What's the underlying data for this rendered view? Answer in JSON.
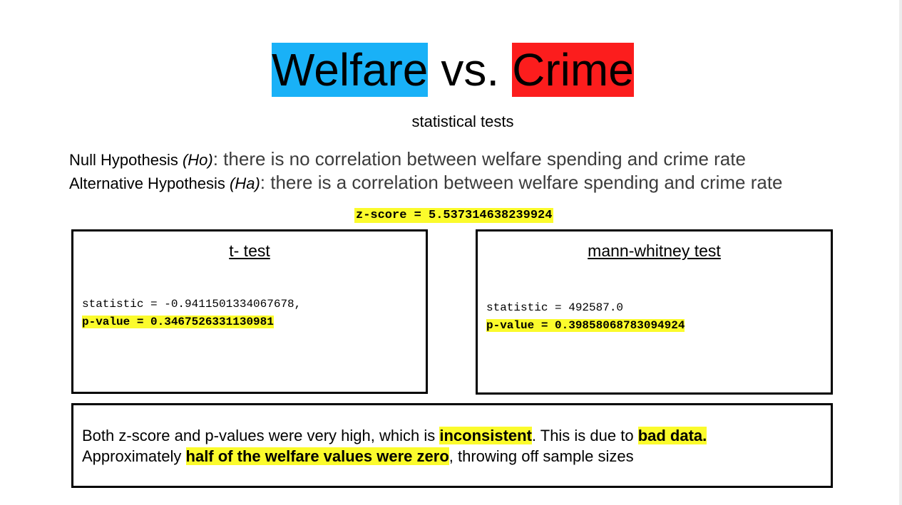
{
  "title": {
    "left": "Welfare",
    "middle": "vs.",
    "right": "Crime"
  },
  "subtitle": "statistical tests",
  "hypotheses": {
    "null_label": "Null Hypothesis ",
    "null_abbr": "(Ho)",
    "null_text": ": there is no correlation between welfare spending and crime rate",
    "alt_label": "Alternative Hypothesis ",
    "alt_abbr": "(Ha)",
    "alt_text": ": there is a correlation between welfare spending and crime rate"
  },
  "zscore": "z-score = 5.537314638239924",
  "ttest": {
    "title": "t- test",
    "statistic": "statistic = -0.9411501334067678,",
    "pvalue": "p-value = 0.3467526331130981"
  },
  "mannwhitney": {
    "title": "mann-whitney test",
    "statistic": "statistic = 492587.0",
    "pvalue": "p-value = 0.39858068783094924"
  },
  "conclusion": {
    "part1": "Both z-score and p-values were very high, which is ",
    "highlight1": "inconsistent",
    "part2": ". This is due to ",
    "highlight2": "bad data.",
    "part3": "Approximately ",
    "highlight3": "half of the welfare values were zero",
    "part4": ", throwing off sample sizes"
  },
  "colors": {
    "welfare": "#19b1f7",
    "crime": "#fc1d1d",
    "highlight": "#fbfb2c"
  }
}
